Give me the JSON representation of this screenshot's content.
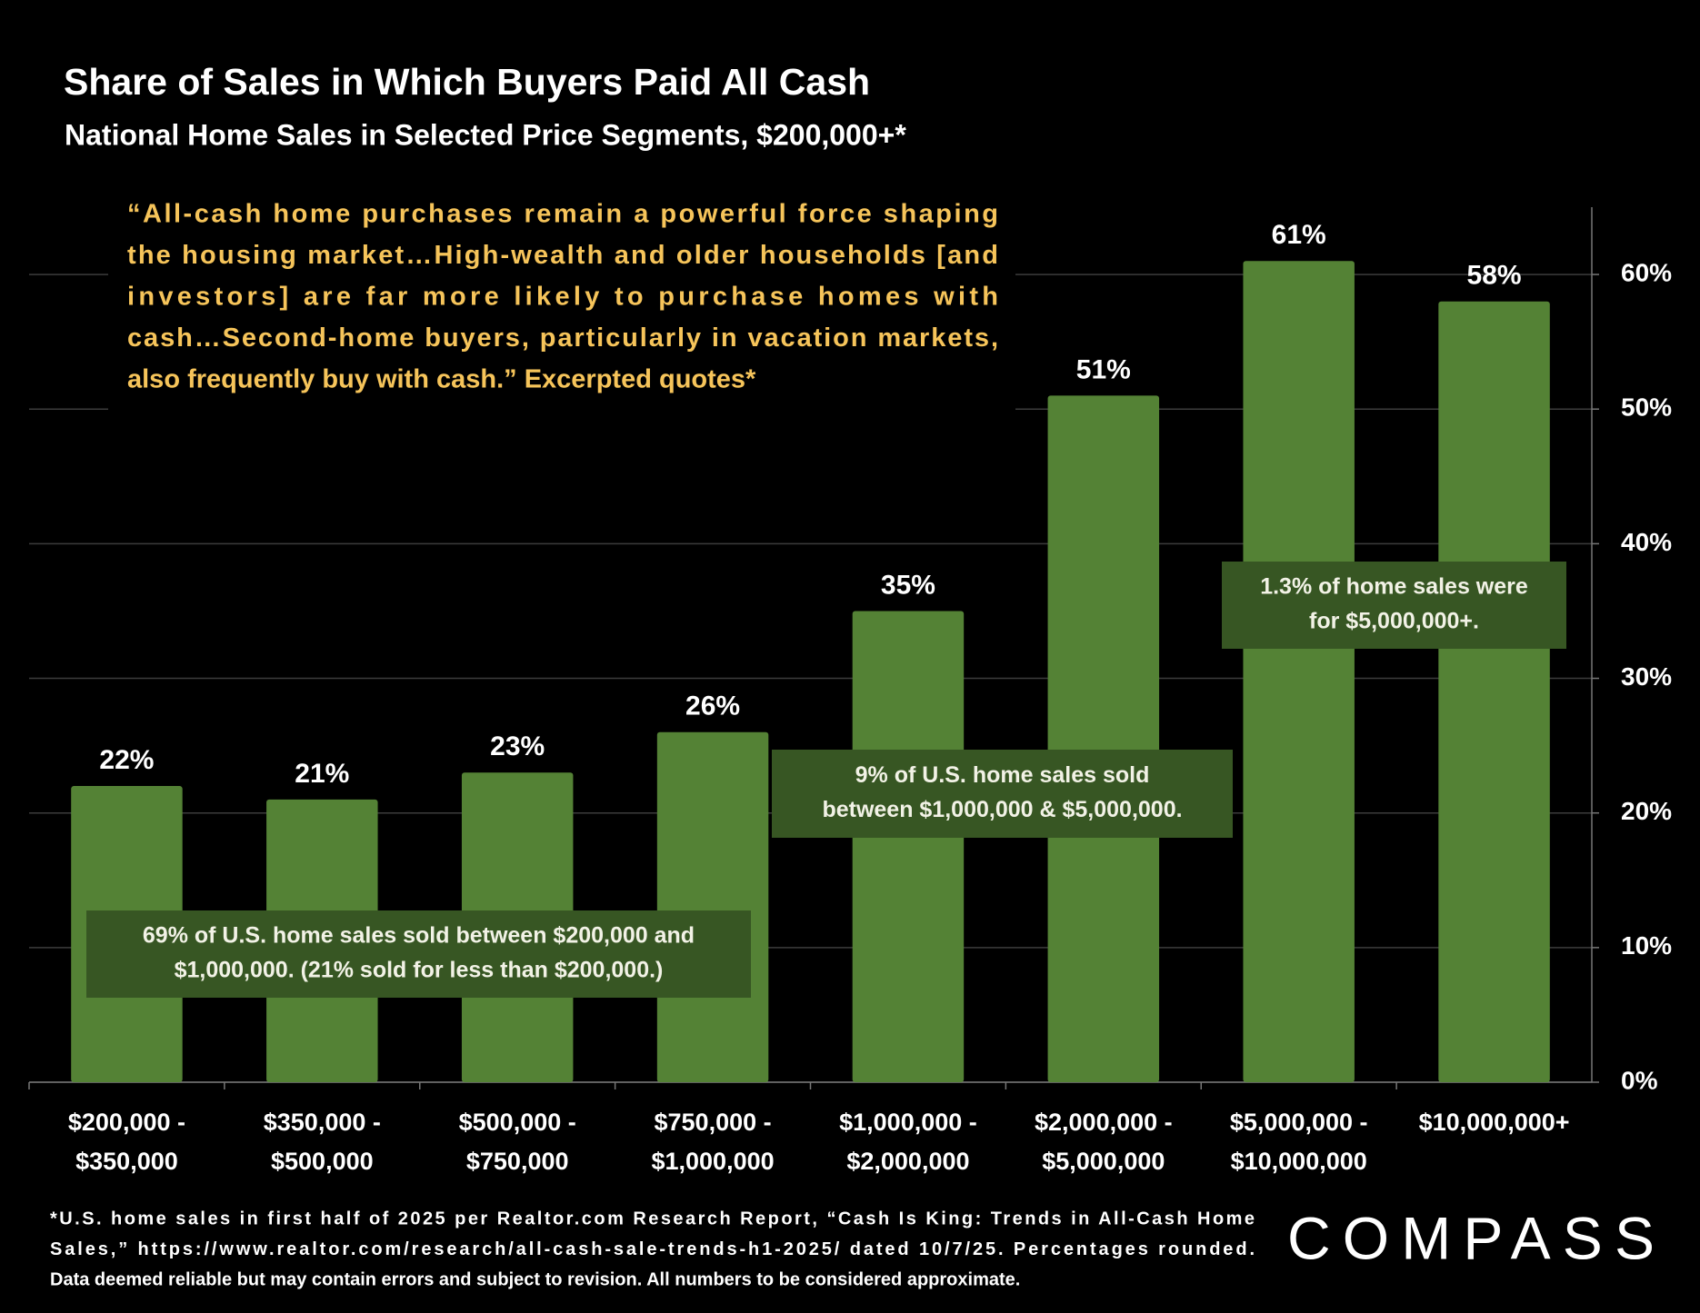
{
  "chart_data": {
    "type": "bar",
    "title": "Share of Sales in Which Buyers Paid All Cash",
    "subtitle": "National Home Sales in Selected Price Segments, $200,000+*",
    "quote": [
      "“All-cash home purchases remain a powerful force shaping",
      "the housing market…High-wealth and older households [and",
      "investors] are far more likely to purchase homes with",
      "cash…Second-home buyers, particularly in vacation markets,",
      "also frequently buy with cash.” Excerpted quotes*"
    ],
    "annotations": [
      [
        "69% of U.S. home sales sold between $200,000 and",
        "$1,000,000. (21% sold for less than $200,000.)"
      ],
      [
        "9% of U.S. home sales sold",
        "between $1,000,000 & $5,000,000."
      ],
      [
        "1.3% of home sales were",
        "for  $5,000,000+."
      ]
    ],
    "categories": [
      [
        "$200,000 -",
        "$350,000"
      ],
      [
        "$350,000 -",
        "$500,000"
      ],
      [
        "$500,000 -",
        "$750,000"
      ],
      [
        "$750,000 -",
        "$1,000,000"
      ],
      [
        "$1,000,000 -",
        "$2,000,000"
      ],
      [
        "$2,000,000 -",
        "$5,000,000"
      ],
      [
        "$5,000,000 -",
        "$10,000,000"
      ],
      [
        "$10,000,000+"
      ]
    ],
    "values": [
      22,
      21,
      23,
      26,
      35,
      51,
      61,
      58
    ],
    "value_labels": [
      "22%",
      "21%",
      "23%",
      "26%",
      "35%",
      "51%",
      "61%",
      "58%"
    ],
    "color": "#548235",
    "ylim": [
      0,
      65
    ],
    "yticks": [
      {
        "value": 0,
        "label": "0%"
      },
      {
        "value": 10,
        "label": "10%"
      },
      {
        "value": 20,
        "label": "20%"
      },
      {
        "value": 30,
        "label": "30%"
      },
      {
        "value": 40,
        "label": "40%"
      },
      {
        "value": 50,
        "label": "50%"
      },
      {
        "value": 60,
        "label": "60%"
      }
    ],
    "grid": true,
    "y_axis_side": "right",
    "footnote": [
      "*U.S. home sales in first half of 2025 per Realtor.com Research Report, “Cash Is King: Trends in All-Cash Home",
      "Sales,” https://www.realtor.com/research/all-cash-sale-trends-h1-2025/ dated 10/7/25. Percentages rounded.",
      "Data deemed reliable but may contain errors and subject to revision. All numbers to be considered approximate."
    ]
  },
  "logo": "COMPASS"
}
